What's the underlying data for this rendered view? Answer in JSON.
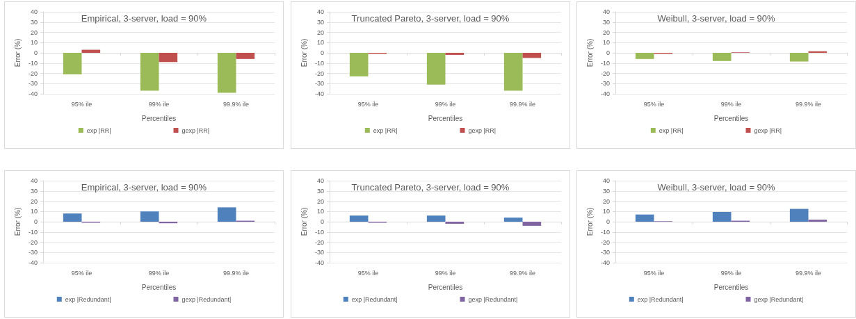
{
  "chart_data": [
    {
      "type": "bar",
      "title": "Empirical, 3-server, load = 90%",
      "xlabel": "Percentiles",
      "ylabel": "Error (%)",
      "categories": [
        "95% ile",
        "99% ile",
        "99.9% ile"
      ],
      "ylim": [
        -40,
        40
      ],
      "yticks": [
        -40,
        -30,
        -20,
        -10,
        0,
        10,
        20,
        30,
        40
      ],
      "grid": "y",
      "legend": "bottom",
      "series": [
        {
          "name": "exp |RR|",
          "color": "#9bbb59",
          "values": [
            -21,
            -37,
            -39
          ]
        },
        {
          "name": "gexp |RR|",
          "color": "#c0504d",
          "values": [
            3,
            -9,
            -6
          ]
        }
      ]
    },
    {
      "type": "bar",
      "title": "Truncated Pareto, 3-server, load = 90%",
      "xlabel": "Percentiles",
      "ylabel": "Error (%)",
      "categories": [
        "95% ile",
        "99% ile",
        "99.9% ile"
      ],
      "ylim": [
        -40,
        40
      ],
      "yticks": [
        -40,
        -30,
        -20,
        -10,
        0,
        10,
        20,
        30,
        40
      ],
      "grid": "y",
      "legend": "bottom",
      "series": [
        {
          "name": "exp |RR|",
          "color": "#9bbb59",
          "values": [
            -23,
            -31,
            -37
          ]
        },
        {
          "name": "gexp |RR|",
          "color": "#c0504d",
          "values": [
            -1,
            -2,
            -5
          ]
        }
      ]
    },
    {
      "type": "bar",
      "title": "Weibull, 3-server, load = 90%",
      "xlabel": "Percentiles",
      "ylabel": "Error (%)",
      "categories": [
        "95% ile",
        "99% ile",
        "99.9% ile"
      ],
      "ylim": [
        -40,
        40
      ],
      "yticks": [
        -40,
        -30,
        -20,
        -10,
        0,
        10,
        20,
        30,
        40
      ],
      "grid": "y",
      "legend": "bottom",
      "series": [
        {
          "name": "exp |RR|",
          "color": "#9bbb59",
          "values": [
            -6,
            -8,
            -8.5
          ]
        },
        {
          "name": "gexp |RR|",
          "color": "#c0504d",
          "values": [
            -1,
            0.5,
            1.5
          ]
        }
      ]
    },
    {
      "type": "bar",
      "title": "Empirical, 3-server, load = 90%",
      "xlabel": "Percentiles",
      "ylabel": "Error (%)",
      "categories": [
        "95% ile",
        "99% ile",
        "99.9% ile"
      ],
      "ylim": [
        -40,
        40
      ],
      "yticks": [
        -40,
        -30,
        -20,
        -10,
        0,
        10,
        20,
        30,
        40
      ],
      "grid": "y",
      "legend": "bottom",
      "series": [
        {
          "name": "exp |Redundant|",
          "color": "#4f81bd",
          "values": [
            8,
            10,
            14
          ]
        },
        {
          "name": "gexp |Redundant|",
          "color": "#8064a2",
          "values": [
            -1,
            -1.5,
            1
          ]
        }
      ]
    },
    {
      "type": "bar",
      "title": "Truncated Pareto, 3-server, load = 90%",
      "xlabel": "Percentiles",
      "ylabel": "Error (%)",
      "categories": [
        "95% ile",
        "99% ile",
        "99.9% ile"
      ],
      "ylim": [
        -40,
        40
      ],
      "yticks": [
        -40,
        -30,
        -20,
        -10,
        0,
        10,
        20,
        30,
        40
      ],
      "grid": "y",
      "legend": "bottom",
      "series": [
        {
          "name": "exp |Redundant|",
          "color": "#4f81bd",
          "values": [
            6,
            6,
            4
          ]
        },
        {
          "name": "gexp |Redundant|",
          "color": "#8064a2",
          "values": [
            -1,
            -2,
            -4
          ]
        }
      ]
    },
    {
      "type": "bar",
      "title": "Weibull, 3-server, load = 90%",
      "xlabel": "Percentiles",
      "ylabel": "Error (%)",
      "categories": [
        "95% ile",
        "99% ile",
        "99.9% ile"
      ],
      "ylim": [
        -40,
        40
      ],
      "yticks": [
        -40,
        -30,
        -20,
        -10,
        0,
        10,
        20,
        30,
        40
      ],
      "grid": "y",
      "legend": "bottom",
      "series": [
        {
          "name": "exp |Redundant|",
          "color": "#4f81bd",
          "values": [
            7,
            9.5,
            12.5
          ]
        },
        {
          "name": "gexp |Redundant|",
          "color": "#8064a2",
          "values": [
            0.5,
            1,
            2
          ]
        }
      ]
    }
  ]
}
